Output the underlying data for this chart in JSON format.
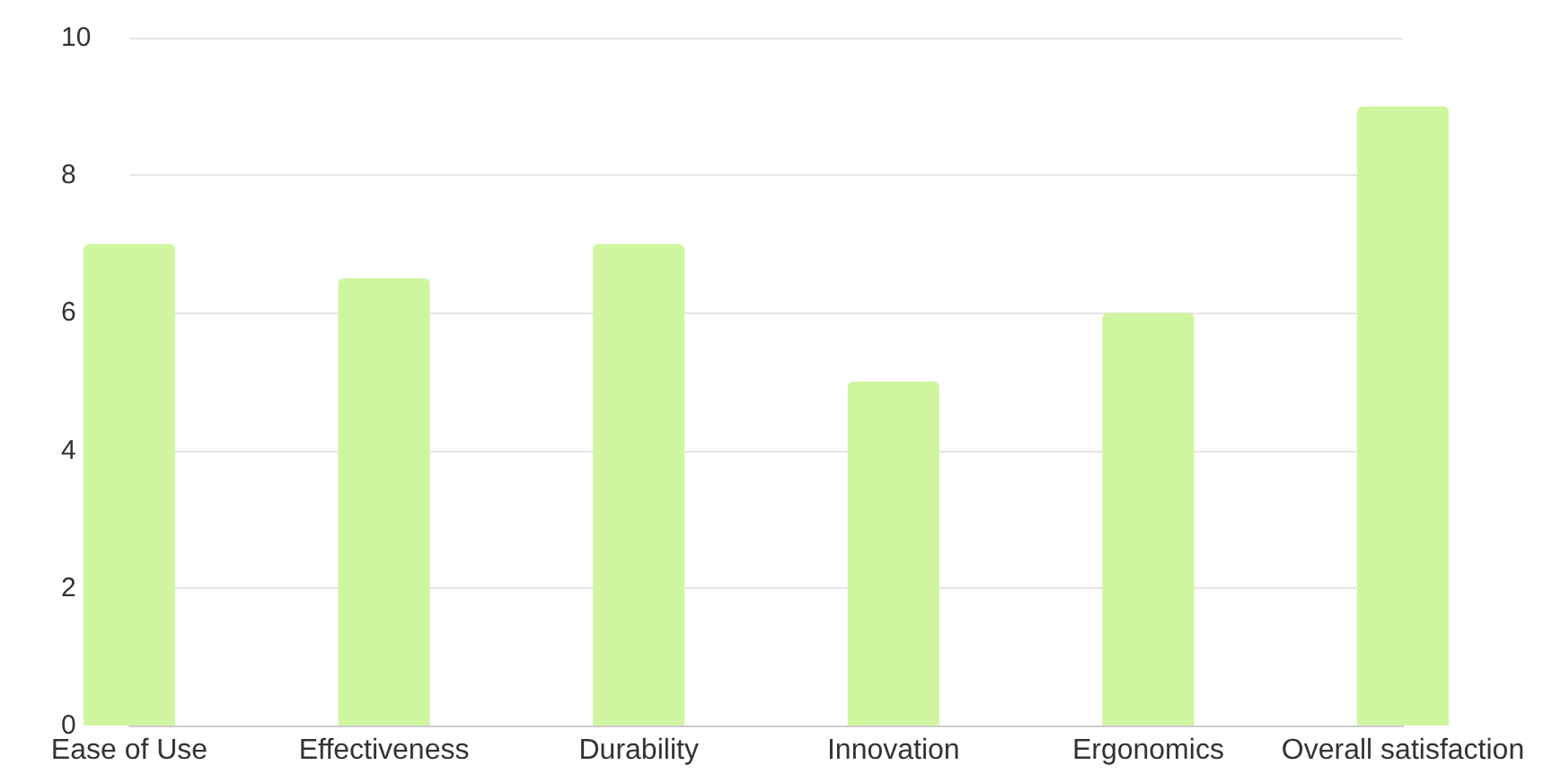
{
  "chart_data": {
    "type": "bar",
    "categories": [
      "Ease of Use",
      "Effectiveness",
      "Durability",
      "Innovation",
      "Ergonomics",
      "Overall satisfaction"
    ],
    "values": [
      7,
      6.5,
      7,
      5,
      6,
      9
    ],
    "color": "#cff5a0",
    "ylim": [
      0,
      10
    ],
    "yticks": [
      0,
      2,
      4,
      6,
      8,
      10
    ],
    "grid": "y"
  }
}
